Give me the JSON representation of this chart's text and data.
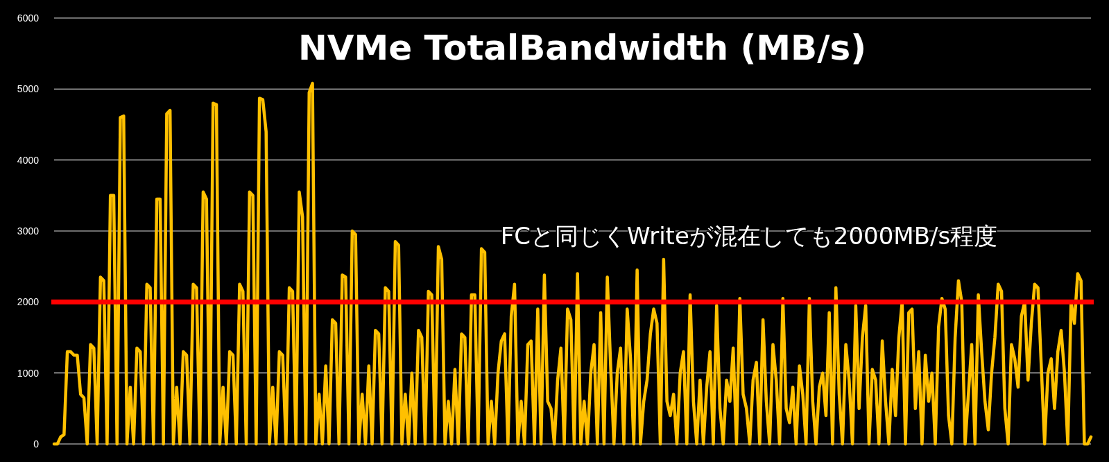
{
  "chart_data": {
    "type": "line",
    "title": "NVMe TotalBandwidth (MB/s)",
    "annotations": [
      "FCと同じくWriteが混在しても2000MB/s程度"
    ],
    "ylim": [
      0,
      6000
    ],
    "yticks": [
      0,
      1000,
      2000,
      3000,
      4000,
      5000,
      6000
    ],
    "grid": "y",
    "marker": "none",
    "ref_lines": [
      {
        "axis": "y",
        "value": 2000,
        "color": "#ff0000"
      }
    ],
    "categories": [
      null,
      null,
      null,
      null,
      null,
      null,
      null,
      null,
      null,
      null,
      null,
      null,
      null,
      null,
      null,
      null,
      null,
      null,
      null,
      null,
      null,
      null,
      null,
      null,
      null,
      null,
      null,
      null,
      null,
      null,
      null,
      null,
      null,
      null,
      null,
      null,
      null,
      null,
      null,
      null,
      null,
      null,
      null,
      null,
      null,
      null,
      null,
      null,
      null,
      null,
      null,
      null,
      null,
      null,
      null,
      null,
      null,
      null,
      null,
      null,
      null,
      null,
      null,
      null,
      null,
      null,
      null,
      null,
      null,
      null,
      null,
      null,
      null,
      null,
      null,
      null,
      null,
      null,
      null,
      null,
      null,
      null,
      null,
      null,
      null,
      null,
      null,
      null,
      null,
      null,
      null,
      null,
      null,
      null,
      null,
      null,
      null,
      null,
      null,
      null,
      null,
      null,
      null,
      null,
      null,
      null,
      null,
      null,
      null,
      null,
      null,
      null,
      null,
      null,
      null,
      null,
      null,
      null,
      null,
      null,
      null,
      null,
      null,
      null,
      null,
      null,
      null,
      null,
      null,
      null,
      null,
      null,
      null,
      null,
      null,
      null,
      null,
      null,
      null,
      null,
      null,
      null,
      null,
      null,
      null,
      null,
      null,
      null,
      null,
      null,
      null,
      null,
      null,
      null,
      null,
      null,
      null,
      null,
      null,
      null,
      null,
      null,
      null,
      null,
      null,
      null,
      null,
      null,
      null,
      null,
      null,
      null,
      null,
      null,
      null,
      null,
      null,
      null,
      null,
      null,
      null,
      null,
      null,
      null,
      null,
      null,
      null,
      null,
      null,
      null,
      null,
      null,
      null,
      null,
      null,
      null,
      null,
      null,
      null,
      null,
      null,
      null,
      null,
      null,
      null,
      null,
      null,
      null,
      null,
      null,
      null,
      null,
      null,
      null,
      null,
      null,
      null,
      null,
      null,
      null,
      null,
      null,
      null,
      null,
      null,
      null,
      null,
      null,
      null,
      null,
      null,
      null,
      null,
      null,
      null,
      null,
      null,
      null,
      null,
      null,
      null,
      null,
      null,
      null,
      null,
      null,
      null,
      null,
      null,
      null,
      null,
      null,
      null,
      null,
      null,
      null,
      null,
      null,
      null,
      null,
      null,
      null,
      null,
      null,
      null,
      null,
      null,
      null,
      null,
      null,
      null,
      null,
      null,
      null,
      null,
      null,
      null,
      null,
      null,
      null,
      null,
      null,
      null,
      null,
      null,
      null,
      null,
      null,
      null,
      null,
      null,
      null,
      null,
      null,
      null,
      null,
      null,
      null,
      null,
      null,
      null,
      null,
      null,
      null,
      null,
      null,
      null,
      null,
      null,
      null,
      null,
      null,
      null,
      null
    ],
    "series": [
      {
        "color": "#ffc000",
        "values": [
          0,
          0,
          100,
          130,
          1300,
          1300,
          1250,
          1250,
          700,
          650,
          0,
          1400,
          1350,
          0,
          2350,
          2300,
          0,
          3500,
          3500,
          0,
          4600,
          4620,
          0,
          800,
          0,
          1350,
          1300,
          0,
          2250,
          2200,
          0,
          3450,
          3450,
          0,
          4650,
          4700,
          0,
          800,
          0,
          1300,
          1250,
          0,
          2250,
          2200,
          0,
          3550,
          3450,
          0,
          4800,
          4780,
          0,
          800,
          0,
          1300,
          1250,
          0,
          2250,
          2150,
          0,
          3550,
          3500,
          0,
          4870,
          4850,
          4400,
          0,
          800,
          0,
          1300,
          1250,
          0,
          2200,
          2150,
          0,
          3550,
          3200,
          0,
          4950,
          5080,
          0,
          700,
          0,
          1100,
          0,
          1750,
          1700,
          0,
          2380,
          2350,
          0,
          3000,
          2950,
          0,
          700,
          0,
          1100,
          0,
          1600,
          1550,
          0,
          2200,
          2150,
          0,
          2850,
          2800,
          0,
          700,
          0,
          1000,
          0,
          1600,
          1500,
          0,
          2150,
          2100,
          0,
          2780,
          2600,
          0,
          600,
          0,
          1050,
          0,
          1550,
          1500,
          0,
          2100,
          2100,
          0,
          2750,
          2700,
          0,
          600,
          0,
          1000,
          1450,
          1550,
          0,
          1800,
          2250,
          0,
          600,
          0,
          1400,
          1450,
          0,
          1900,
          0,
          2380,
          600,
          500,
          0,
          900,
          1350,
          0,
          1900,
          1750,
          0,
          2400,
          0,
          600,
          0,
          1000,
          1400,
          0,
          1850,
          0,
          2350,
          1100,
          0,
          1000,
          1350,
          0,
          1900,
          1200,
          0,
          2450,
          0,
          600,
          900,
          1550,
          1900,
          1700,
          0,
          2600,
          600,
          400,
          700,
          0,
          1000,
          1300,
          0,
          2100,
          600,
          0,
          900,
          0,
          800,
          1300,
          0,
          1950,
          500,
          0,
          900,
          600,
          1350,
          0,
          2050,
          700,
          500,
          0,
          900,
          1150,
          0,
          1750,
          600,
          0,
          1400,
          900,
          0,
          2050,
          500,
          300,
          800,
          0,
          1100,
          700,
          0,
          2050,
          600,
          0,
          800,
          1000,
          400,
          1850,
          0,
          2200,
          700,
          0,
          1400,
          900,
          0,
          1950,
          500,
          1500,
          1950,
          0,
          1050,
          900,
          0,
          1450,
          600,
          0,
          1050,
          400,
          1500,
          2000,
          0,
          1850,
          1900,
          500,
          1300,
          0,
          1250,
          600,
          1000,
          0,
          1650,
          2050,
          1900,
          400,
          0,
          1500,
          2300,
          2000,
          0,
          700,
          1400,
          0,
          2100,
          1300,
          600,
          200,
          1000,
          1500,
          2250,
          2150,
          500,
          0,
          1400,
          1200,
          800,
          1800,
          2000,
          900,
          1700,
          2250,
          2200,
          1100,
          0,
          1000,
          1200,
          500,
          1300,
          1600,
          1000,
          0,
          2000,
          1700,
          2400,
          2300,
          0,
          0,
          100
        ]
      }
    ]
  }
}
